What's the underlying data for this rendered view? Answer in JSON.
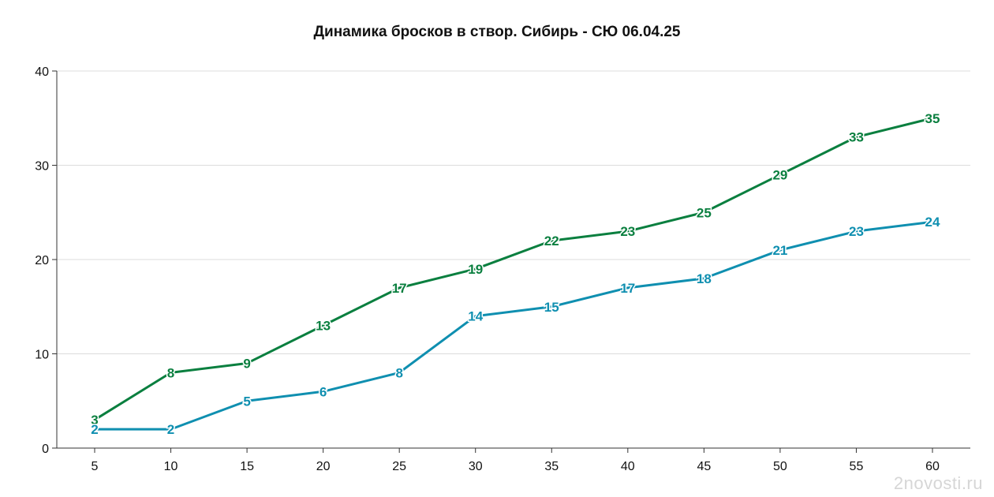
{
  "chart_data": {
    "type": "line",
    "title": "Динамика бросков в створ. Сибирь - СЮ 06.04.25",
    "xlabel": "",
    "ylabel": "",
    "x": [
      5,
      10,
      15,
      20,
      25,
      30,
      35,
      40,
      45,
      50,
      55,
      60
    ],
    "ylim": [
      0,
      40
    ],
    "yticks": [
      0,
      10,
      20,
      30,
      40
    ],
    "grid": true,
    "series": [
      {
        "color": "#0a7f3f",
        "values": [
          3,
          8,
          9,
          13,
          17,
          19,
          22,
          23,
          25,
          29,
          33,
          35
        ]
      },
      {
        "color": "#0f8fb0",
        "values": [
          2,
          2,
          5,
          6,
          8,
          14,
          15,
          17,
          18,
          21,
          23,
          24
        ]
      }
    ]
  },
  "watermark": "2novosti.ru"
}
